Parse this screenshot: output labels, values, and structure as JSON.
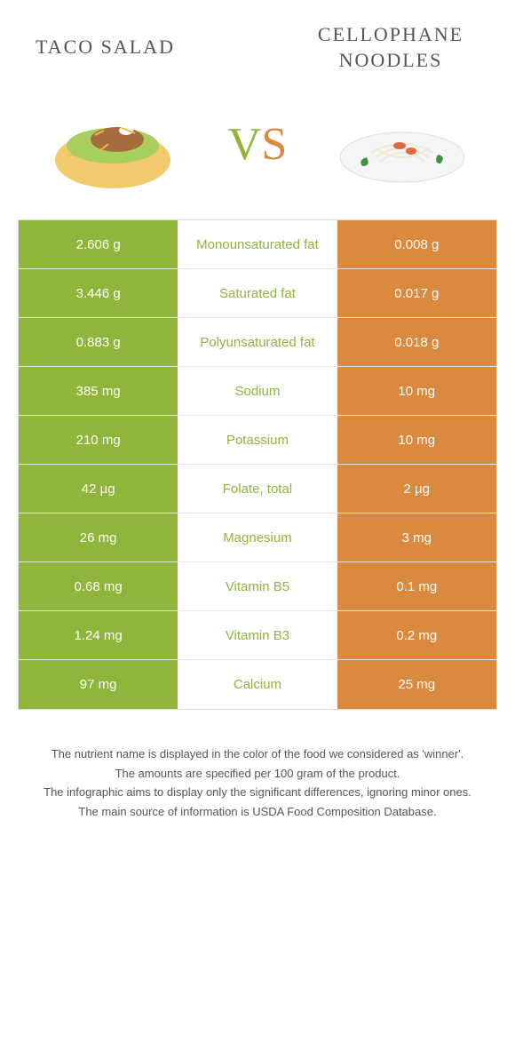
{
  "colors": {
    "left_food": "#8fb53b",
    "right_food": "#d98a3f",
    "nutrient_label_left_winner": "#8fb53b",
    "nutrient_label_right_winner": "#d98a3f",
    "row_border": "#e5e5e5"
  },
  "header": {
    "left_title": "TACO SALAD",
    "right_title": "CELLOPHANE NOODLES",
    "vs_v": "V",
    "vs_s": "S"
  },
  "rows": [
    {
      "left": "2.606 g",
      "label": "Monounsaturated fat",
      "right": "0.008 g",
      "winner": "left"
    },
    {
      "left": "3.446 g",
      "label": "Saturated fat",
      "right": "0.017 g",
      "winner": "left"
    },
    {
      "left": "0.883 g",
      "label": "Polyunsaturated fat",
      "right": "0.018 g",
      "winner": "left"
    },
    {
      "left": "385 mg",
      "label": "Sodium",
      "right": "10 mg",
      "winner": "left"
    },
    {
      "left": "210 mg",
      "label": "Potassium",
      "right": "10 mg",
      "winner": "left"
    },
    {
      "left": "42 µg",
      "label": "Folate, total",
      "right": "2 µg",
      "winner": "left"
    },
    {
      "left": "26 mg",
      "label": "Magnesium",
      "right": "3 mg",
      "winner": "left"
    },
    {
      "left": "0.68 mg",
      "label": "Vitamin B5",
      "right": "0.1 mg",
      "winner": "left"
    },
    {
      "left": "1.24 mg",
      "label": "Vitamin B3",
      "right": "0.2 mg",
      "winner": "left"
    },
    {
      "left": "97 mg",
      "label": "Calcium",
      "right": "25 mg",
      "winner": "left"
    }
  ],
  "footer": {
    "line1": "The nutrient name is displayed in the color of the food we considered as 'winner'.",
    "line2": "The amounts are specified per 100 gram of the product.",
    "line3": "The infographic aims to display only the significant differences, ignoring minor ones.",
    "line4": "The main source of information is USDA Food Composition Database."
  }
}
